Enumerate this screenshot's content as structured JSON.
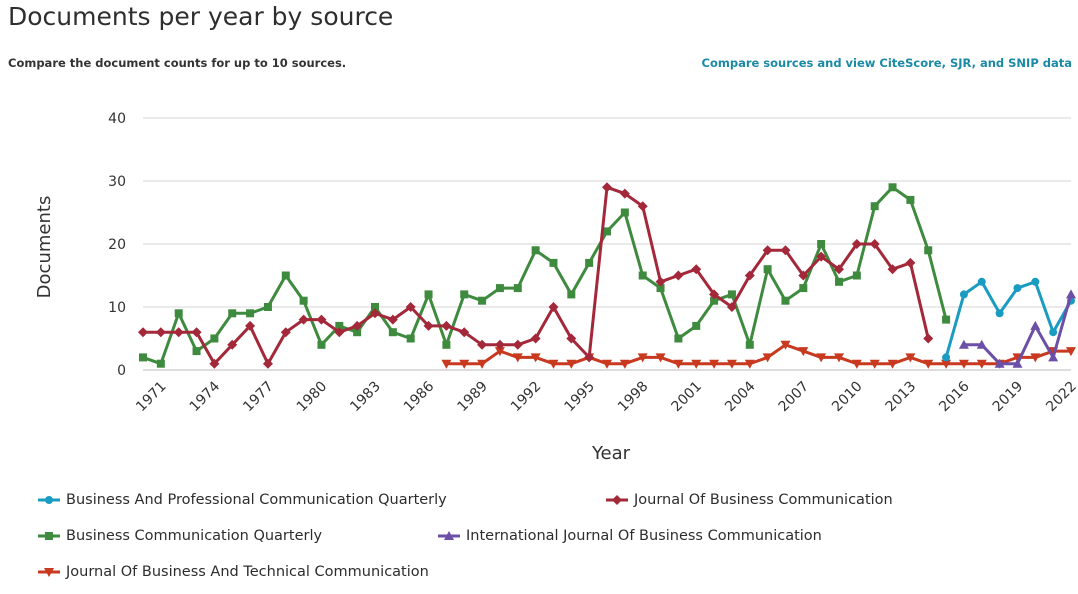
{
  "header": {
    "title": "Documents per year by source",
    "subtitle": "Compare the document counts for up to 10 sources.",
    "compare_link": "Compare sources and view CiteScore, SJR, and SNIP data"
  },
  "chart_data": {
    "type": "line",
    "title": "Documents per year by source",
    "xlabel": "Year",
    "ylabel": "Documents",
    "xlim": [
      1970,
      2022
    ],
    "ylim": [
      0,
      40
    ],
    "yticks": [
      0,
      10,
      20,
      30,
      40
    ],
    "xticks": [
      1971,
      1974,
      1977,
      1980,
      1983,
      1986,
      1989,
      1992,
      1995,
      1998,
      2001,
      2004,
      2007,
      2010,
      2013,
      2016,
      2019,
      2022
    ],
    "grid": true,
    "legend_position": "bottom",
    "series": [
      {
        "name": "Business And Professional Communication Quarterly",
        "color": "#1a9bc2",
        "marker": "circle",
        "x": [
          2015,
          2016,
          2017,
          2018,
          2019,
          2020,
          2021,
          2022
        ],
        "values": [
          2,
          12,
          14,
          9,
          13,
          14,
          6,
          11
        ]
      },
      {
        "name": "Journal Of Business Communication",
        "color": "#a3283a",
        "marker": "diamond",
        "x": [
          1970,
          1971,
          1972,
          1973,
          1974,
          1975,
          1976,
          1977,
          1978,
          1979,
          1980,
          1981,
          1982,
          1983,
          1984,
          1985,
          1986,
          1987,
          1988,
          1989,
          1990,
          1991,
          1992,
          1993,
          1994,
          1995,
          1996,
          1997,
          1998,
          1999,
          2000,
          2001,
          2002,
          2003,
          2004,
          2005,
          2006,
          2007,
          2008,
          2009,
          2010,
          2011,
          2012,
          2013,
          2014
        ],
        "values": [
          6,
          6,
          6,
          6,
          1,
          4,
          7,
          1,
          6,
          8,
          8,
          6,
          7,
          9,
          8,
          10,
          7,
          7,
          6,
          4,
          4,
          4,
          5,
          10,
          5,
          2,
          29,
          28,
          26,
          14,
          15,
          16,
          12,
          10,
          15,
          19,
          19,
          15,
          18,
          16,
          20,
          20,
          16,
          17,
          5
        ]
      },
      {
        "name": "Business Communication Quarterly",
        "color": "#3e8a3e",
        "marker": "square",
        "x": [
          1970,
          1971,
          1972,
          1973,
          1974,
          1975,
          1976,
          1977,
          1978,
          1979,
          1980,
          1981,
          1982,
          1983,
          1984,
          1985,
          1986,
          1987,
          1988,
          1989,
          1990,
          1991,
          1992,
          1993,
          1994,
          1995,
          1996,
          1997,
          1998,
          1999,
          2000,
          2001,
          2002,
          2003,
          2004,
          2005,
          2006,
          2007,
          2008,
          2009,
          2010,
          2011,
          2012,
          2013,
          2014,
          2015
        ],
        "values": [
          2,
          1,
          9,
          3,
          5,
          9,
          9,
          10,
          15,
          11,
          4,
          7,
          6,
          10,
          6,
          5,
          12,
          4,
          12,
          11,
          13,
          13,
          19,
          17,
          12,
          17,
          22,
          25,
          15,
          13,
          5,
          7,
          11,
          12,
          4,
          16,
          11,
          13,
          20,
          14,
          15,
          26,
          29,
          27,
          19,
          8
        ]
      },
      {
        "name": "International Journal Of Business Communication",
        "color": "#6c4fa6",
        "marker": "triangle-up",
        "x": [
          2016,
          2017,
          2018,
          2019,
          2020,
          2021,
          2022
        ],
        "values": [
          4,
          4,
          1,
          1,
          7,
          2,
          12
        ]
      },
      {
        "name": "Journal Of Business And Technical Communication",
        "color": "#c8391f",
        "marker": "triangle-down",
        "x": [
          1987,
          1988,
          1989,
          1990,
          1991,
          1992,
          1993,
          1994,
          1995,
          1996,
          1997,
          1998,
          1999,
          2000,
          2001,
          2002,
          2003,
          2004,
          2005,
          2006,
          2007,
          2008,
          2009,
          2010,
          2011,
          2012,
          2013,
          2014,
          2015,
          2016,
          2017,
          2018,
          2019,
          2020,
          2021,
          2022
        ],
        "values": [
          1,
          1,
          1,
          3,
          2,
          2,
          1,
          1,
          2,
          1,
          1,
          2,
          2,
          1,
          1,
          1,
          1,
          1,
          2,
          4,
          3,
          2,
          2,
          1,
          1,
          1,
          2,
          1,
          1,
          1,
          1,
          1,
          2,
          2,
          3,
          3
        ]
      }
    ]
  }
}
